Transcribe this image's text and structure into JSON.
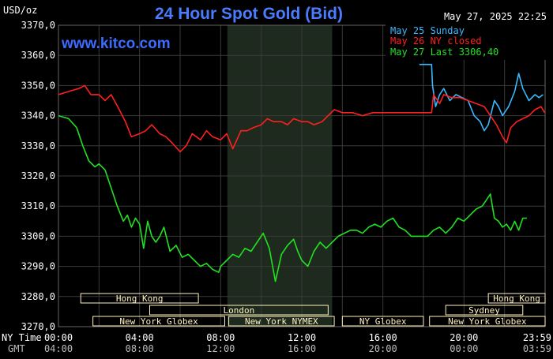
{
  "header": {
    "units": "USD/oz",
    "title": "24 Hour Spot Gold (Bid)",
    "timestamp": "May 27, 2025 22:25",
    "watermark": "www.kitco.com"
  },
  "colors": {
    "background": "#000000",
    "grid": "#3a3a3a",
    "axis_text": "#ffffff",
    "title": "#4a7cff",
    "watermark": "#3c6cff",
    "sunday": "#3ab8ff",
    "closed": "#ff1f1f",
    "last": "#22e022",
    "session_fill": "#fff2c0",
    "session_text": "#000000",
    "nymex_shade": "#1e2a1e"
  },
  "sessions": [
    {
      "label": "Hong Kong"
    },
    {
      "label": "London"
    },
    {
      "label": "New York Globex"
    },
    {
      "label": "New York NYMEX"
    },
    {
      "label": "NY Globex"
    },
    {
      "label": "Sydney"
    },
    {
      "label": "Hong Kong"
    },
    {
      "label": "New York Globex"
    }
  ],
  "time_axis": {
    "row1_label": "NY Time",
    "row2_label": "GMT",
    "ny_ticks": [
      "00:00",
      "04:00",
      "08:00",
      "12:00",
      "16:00",
      "20:00",
      "23:59"
    ],
    "gmt_ticks": [
      "04:00",
      "08:00",
      "12:00",
      "16:00",
      "20:00",
      "00:00",
      "03:59"
    ]
  },
  "chart_data": {
    "type": "line",
    "title": "24 Hour Spot Gold (Bid)",
    "ylabel": "USD/oz",
    "xlabel": "",
    "x_unit": "hours (NY Time)",
    "xlim": [
      0,
      24
    ],
    "ylim": [
      3270,
      3370
    ],
    "y_ticks": [
      3270,
      3280,
      3290,
      3300,
      3310,
      3320,
      3330,
      3340,
      3350,
      3360,
      3370
    ],
    "y_tick_labels": [
      "3270,0",
      "3280,0",
      "3290,0",
      "3300,0",
      "3310,0",
      "3320,0",
      "3330,0",
      "3340,0",
      "3350,0",
      "3360,0",
      "3370,0"
    ],
    "grid": true,
    "legend_position": "top-right",
    "series": [
      {
        "name": "May 25 Sunday",
        "color": "#3ab8ff",
        "x": [
          17.8,
          18.4,
          18.45,
          18.6,
          18.8,
          19.0,
          19.3,
          19.6,
          19.9,
          20.2,
          20.5,
          20.8,
          21.0,
          21.2,
          21.5,
          21.7,
          21.9,
          22.2,
          22.5,
          22.7,
          22.9,
          23.2,
          23.5,
          23.7,
          23.9
        ],
        "y": [
          3357,
          3357,
          3350,
          3343,
          3347,
          3349,
          3345,
          3347,
          3346,
          3345,
          3340,
          3338,
          3335,
          3337,
          3345,
          3343,
          3340,
          3343,
          3348,
          3354,
          3349,
          3345,
          3347,
          3346,
          3347
        ]
      },
      {
        "name": "May 26 NY closed",
        "color": "#ff1f1f",
        "x": [
          0.0,
          0.5,
          1.0,
          1.3,
          1.6,
          2.0,
          2.3,
          2.6,
          3.0,
          3.3,
          3.6,
          4.0,
          4.3,
          4.6,
          5.0,
          5.3,
          5.6,
          6.0,
          6.3,
          6.6,
          7.0,
          7.3,
          7.6,
          8.0,
          8.3,
          8.6,
          9.0,
          9.3,
          9.6,
          10.0,
          10.3,
          10.6,
          11.0,
          11.3,
          11.6,
          12.0,
          12.3,
          12.6,
          13.0,
          13.3,
          13.6,
          14.0,
          14.5,
          15.0,
          15.5,
          16.0,
          16.5,
          17.0,
          17.5,
          18.0,
          18.4,
          18.5,
          18.8,
          19.0,
          19.4,
          19.8,
          20.2,
          20.6,
          21.0,
          21.3,
          21.6,
          21.9,
          22.1,
          22.3,
          22.6,
          22.9,
          23.2,
          23.5,
          23.8,
          23.98
        ],
        "y": [
          3347,
          3348,
          3349,
          3350,
          3347,
          3347,
          3345,
          3347,
          3342,
          3338,
          3333,
          3334,
          3335,
          3337,
          3334,
          3333,
          3331,
          3328,
          3330,
          3334,
          3332,
          3335,
          3333,
          3332,
          3334,
          3329,
          3335,
          3335,
          3336,
          3337,
          3339,
          3338,
          3338,
          3337,
          3339,
          3338,
          3338,
          3337,
          3338,
          3340,
          3342,
          3341,
          3341,
          3340,
          3341,
          3341,
          3341,
          3341,
          3341,
          3341,
          3341,
          3347,
          3344,
          3347,
          3346,
          3346,
          3345,
          3344,
          3343,
          3340,
          3337,
          3333,
          3331,
          3336,
          3338,
          3339,
          3340,
          3342,
          3343,
          3341
        ]
      },
      {
        "name": "May 27 Last 3306,40",
        "color": "#22e022",
        "x": [
          0.0,
          0.5,
          0.9,
          1.2,
          1.5,
          1.8,
          2.0,
          2.3,
          2.6,
          2.9,
          3.2,
          3.4,
          3.6,
          3.8,
          4.0,
          4.2,
          4.4,
          4.6,
          4.8,
          5.0,
          5.2,
          5.5,
          5.8,
          6.1,
          6.4,
          6.7,
          7.0,
          7.3,
          7.6,
          7.9,
          8.0,
          8.3,
          8.6,
          8.9,
          9.2,
          9.5,
          9.8,
          10.1,
          10.4,
          10.7,
          11.0,
          11.3,
          11.6,
          11.8,
          12.0,
          12.3,
          12.6,
          12.9,
          13.2,
          13.5,
          13.8,
          14.1,
          14.4,
          14.7,
          15.0,
          15.3,
          15.6,
          15.9,
          16.2,
          16.5,
          16.8,
          17.1,
          17.4,
          17.6,
          17.8,
          18.0,
          18.2,
          18.5,
          18.8,
          19.1,
          19.4,
          19.7,
          20.0,
          20.3,
          20.6,
          20.9,
          21.1,
          21.3,
          21.5,
          21.7,
          21.9,
          22.1,
          22.3,
          22.5,
          22.7,
          22.9,
          23.1
        ],
        "y": [
          3340,
          3339,
          3336,
          3330,
          3325,
          3323,
          3324,
          3322,
          3316,
          3310,
          3305,
          3307,
          3303,
          3306,
          3304,
          3296,
          3305,
          3300,
          3298,
          3300,
          3303,
          3295,
          3297,
          3293,
          3294,
          3292,
          3290,
          3291,
          3289,
          3288,
          3290,
          3292,
          3294,
          3293,
          3296,
          3295,
          3298,
          3301,
          3296,
          3285,
          3294,
          3297,
          3299,
          3295,
          3292,
          3290,
          3295,
          3298,
          3296,
          3298,
          3300,
          3301,
          3302,
          3302,
          3301,
          3303,
          3304,
          3303,
          3305,
          3306,
          3303,
          3302,
          3300,
          3300,
          3300,
          3300,
          3300,
          3302,
          3303,
          3301,
          3303,
          3306,
          3305,
          3307,
          3309,
          3310,
          3312,
          3314,
          3306,
          3305,
          3303,
          3304,
          3302,
          3305,
          3302,
          3306,
          3306
        ]
      }
    ],
    "last_value": "3306,40"
  }
}
